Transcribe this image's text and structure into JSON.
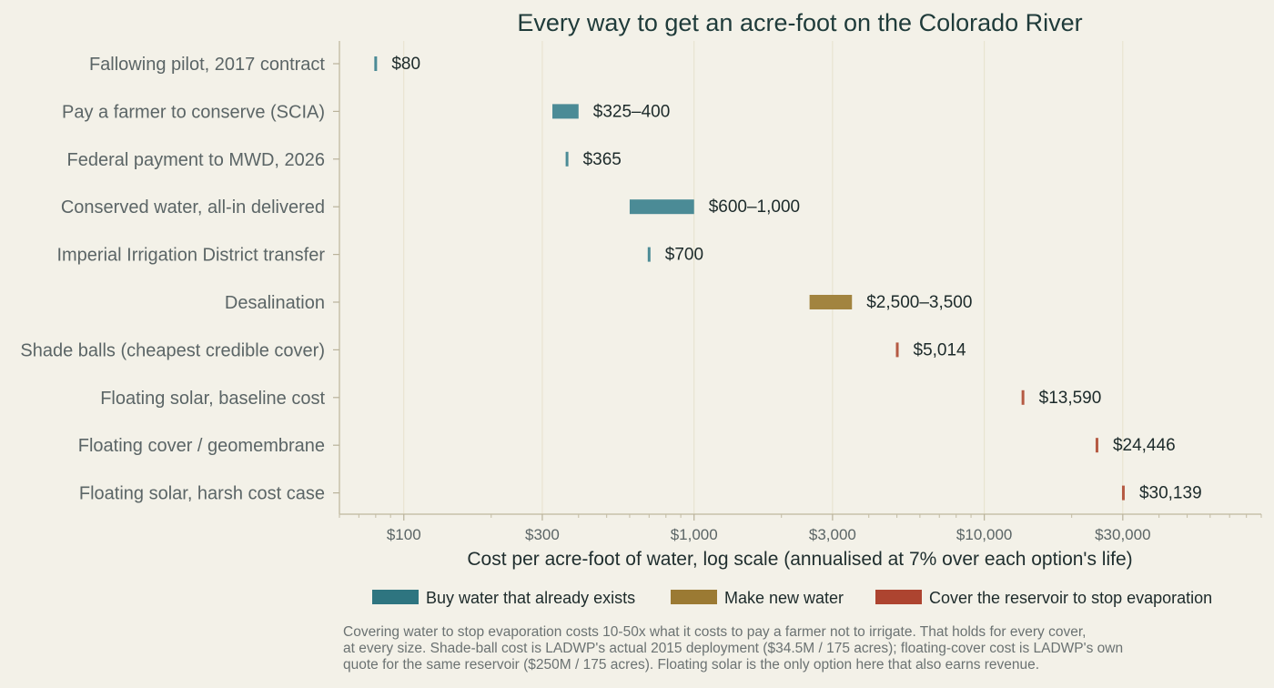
{
  "chart_data": {
    "type": "bar",
    "title": "Every way to get an acre-foot on the Colorado River",
    "xlabel": "Cost per acre-foot of water, log scale (annualised at 7% over each option's life)",
    "x_scale": "log",
    "xlim": [
      60,
      90000
    ],
    "grid": "vertical",
    "x_ticks": [
      {
        "value": 100,
        "label": "$100"
      },
      {
        "value": 300,
        "label": "$300"
      },
      {
        "value": 1000,
        "label": "$1,000"
      },
      {
        "value": 3000,
        "label": "$3,000"
      },
      {
        "value": 10000,
        "label": "$10,000"
      },
      {
        "value": 30000,
        "label": "$30,000"
      }
    ],
    "categories": [
      "Fallowing pilot, 2017 contract",
      "Pay a farmer to conserve (SCIA)",
      "Federal payment to MWD, 2026",
      "Conserved water, all-in delivered",
      "Imperial Irrigation District transfer",
      "Desalination",
      "Shade balls (cheapest credible cover)",
      "Floating solar, baseline cost",
      "Floating cover / geomembrane",
      "Floating solar, harsh cost case"
    ],
    "ranges": [
      {
        "low": 80,
        "high": 80,
        "group": 0,
        "label": "$80"
      },
      {
        "low": 325,
        "high": 400,
        "group": 0,
        "label": "$325–400"
      },
      {
        "low": 365,
        "high": 365,
        "group": 0,
        "label": "$365"
      },
      {
        "low": 600,
        "high": 1000,
        "group": 0,
        "label": "$600–1,000"
      },
      {
        "low": 700,
        "high": 700,
        "group": 0,
        "label": "$700"
      },
      {
        "low": 2500,
        "high": 3500,
        "group": 1,
        "label": "$2,500–3,500"
      },
      {
        "low": 5014,
        "high": 5014,
        "group": 2,
        "label": "$5,014"
      },
      {
        "low": 13590,
        "high": 13590,
        "group": 2,
        "label": "$13,590"
      },
      {
        "low": 24446,
        "high": 24446,
        "group": 2,
        "label": "$24,446"
      },
      {
        "low": 30139,
        "high": 30139,
        "group": 2,
        "label": "$30,139"
      }
    ],
    "legend": {
      "placement": "bottom",
      "entries": [
        {
          "name": "Buy water that already exists",
          "color": "#2e7580",
          "bar_color": "#4b8b96"
        },
        {
          "name": "Make new water",
          "color": "#9b7a33",
          "bar_color": "#a2843f"
        },
        {
          "name": "Cover the reservoir to stop evaporation",
          "color": "#ad4430",
          "bar_color": "#b55a43"
        }
      ]
    }
  },
  "note_lines": [
    "Covering water to stop evaporation costs 10-50x what it costs to pay a farmer not to irrigate. That holds for every cover,",
    "at every size. Shade-ball cost is LADWP's actual 2015 deployment ($34.5M / 175 acres); floating-cover cost is LADWP's own",
    "quote for the same reservoir ($250M / 175 acres). Floating solar is the only option here that also earns revenue."
  ]
}
